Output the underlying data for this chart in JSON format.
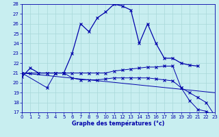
{
  "bg_color": "#c8eef0",
  "line_color": "#0000aa",
  "grid_color": "#a8d8d8",
  "xlabel": "Graphe des températures (°c)",
  "ylim": [
    17,
    28
  ],
  "xlim": [
    0,
    23
  ],
  "yticks": [
    17,
    18,
    19,
    20,
    21,
    22,
    23,
    24,
    25,
    26,
    27,
    28
  ],
  "xticks": [
    0,
    1,
    2,
    3,
    4,
    5,
    6,
    7,
    8,
    9,
    10,
    11,
    12,
    13,
    14,
    15,
    16,
    17,
    18,
    19,
    20,
    21,
    22,
    23
  ],
  "curve1_x": [
    0,
    1,
    2,
    3,
    4,
    5,
    6,
    7,
    8,
    9,
    10,
    11,
    12,
    13,
    14,
    15,
    16,
    17,
    18,
    19,
    20,
    21
  ],
  "curve1_y": [
    20.6,
    21.5,
    21.0,
    21.0,
    21.0,
    21.0,
    23.0,
    26.0,
    25.2,
    26.6,
    27.2,
    28.0,
    27.8,
    27.4,
    24.0,
    26.0,
    24.0,
    22.5,
    22.5,
    22.0,
    21.8,
    21.7
  ],
  "curve2_x": [
    0,
    1,
    2,
    3,
    4,
    5,
    6,
    7,
    8,
    9,
    10,
    11,
    12,
    13,
    14,
    15,
    16,
    17,
    18,
    19,
    20,
    21,
    22,
    23
  ],
  "curve2_y": [
    21.0,
    21.0,
    21.0,
    21.0,
    21.0,
    21.0,
    21.0,
    21.0,
    21.0,
    21.0,
    21.0,
    21.2,
    21.3,
    21.4,
    21.5,
    21.6,
    21.6,
    21.7,
    21.7,
    19.5,
    18.2,
    17.3,
    17.1,
    16.7
  ],
  "curve3_x": [
    0,
    3,
    4,
    5,
    6,
    7,
    8,
    9,
    10,
    11,
    12,
    13,
    14,
    15,
    16,
    17,
    18,
    19,
    20,
    21,
    22,
    23
  ],
  "curve3_y": [
    21.0,
    19.5,
    21.0,
    21.0,
    20.5,
    20.3,
    20.3,
    20.3,
    20.4,
    20.5,
    20.5,
    20.5,
    20.5,
    20.5,
    20.4,
    20.3,
    20.2,
    19.5,
    19.0,
    18.5,
    18.0,
    16.7
  ],
  "curve4_x": [
    0,
    23
  ],
  "curve4_y": [
    21.0,
    19.0
  ]
}
